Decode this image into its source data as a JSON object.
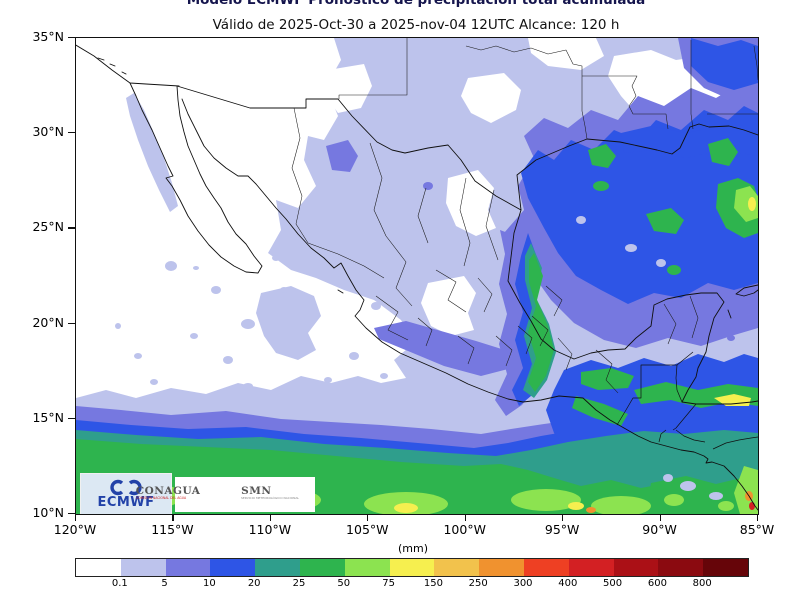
{
  "titles": {
    "model_line": "Modelo ECMWF Pronóstico de precipitación total acumulada",
    "valid_line": "Válido de 2025-Oct-30 a 2025-nov-04 12UTC   Alcance: 120 h"
  },
  "axes": {
    "y_ticks": [
      "35°N",
      "30°N",
      "25°N",
      "20°N",
      "15°N",
      "10°N"
    ],
    "x_ticks": [
      "120°W",
      "115°W",
      "110°W",
      "105°W",
      "100°W",
      "95°W",
      "90°W",
      "85°W"
    ]
  },
  "colorbar": {
    "unit_label": "(mm)",
    "tick_labels": [
      "0.1",
      "5",
      "10",
      "20",
      "25",
      "50",
      "75",
      "150",
      "250",
      "300",
      "400",
      "500",
      "600",
      "800"
    ],
    "colors": [
      "#ffffff",
      "#bdc3ec",
      "#7678e0",
      "#2e55e6",
      "#2f9e8c",
      "#2eb44e",
      "#8ce350",
      "#f6ef4f",
      "#f2c24c",
      "#f0922f",
      "#ee4023",
      "#d32023",
      "#ab1016",
      "#8b0a10",
      "#660509"
    ]
  },
  "logos": {
    "ecmwf_label": "ECMWF",
    "conagua_name": "CONAGUA",
    "conagua_subtitle": "COMISIÓN NACIONAL DEL AGUA",
    "smn_name": "SMN",
    "smn_subtitle": "SERVICIO METEOROLÓGICO NACIONAL"
  },
  "map_meta": {
    "region": "Mexico, Gulf of Mexico and Central America",
    "lon_range_deg_w": [
      120,
      85
    ],
    "lat_range_deg_n": [
      10,
      35
    ],
    "accent_blue": "#2e55e6",
    "background": "#ffffff"
  }
}
